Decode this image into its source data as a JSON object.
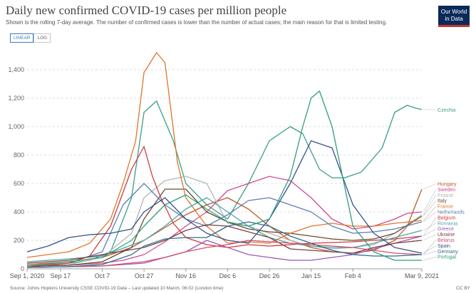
{
  "header": {
    "title": "Daily new confirmed COVID-19 cases per million people",
    "subtitle": "Shown is the rolling 7-day average. The number of confirmed cases is lower than the number of actual cases; the main reason for that is limited testing.",
    "logo_line1": "Our World",
    "logo_line2": "in Data"
  },
  "controls": {
    "linear_label": "LINEAR",
    "log_label": "LOG",
    "selected": "linear"
  },
  "footer": {
    "source": "Source: Johns Hopkins University CSSE COVID-19 Data – Last updated 10 March, 06:02 (London time)",
    "license": "CC BY"
  },
  "chart_data": {
    "type": "line",
    "title": "Daily new confirmed COVID-19 cases per million people",
    "xlabel": "",
    "ylabel": "",
    "x_tick_labels": [
      "Sep 1, 2020",
      "Sep 17",
      "Oct 7",
      "Oct 27",
      "Nov 16",
      "Dec 6",
      "Dec 26",
      "Jan 15",
      "Feb 4",
      "Mar 9, 2021"
    ],
    "x_tick_days": [
      0,
      16,
      36,
      56,
      76,
      96,
      116,
      136,
      156,
      189
    ],
    "xlim": [
      0,
      189
    ],
    "ylim": [
      0,
      1500
    ],
    "y_ticks": [
      0,
      200,
      400,
      600,
      800,
      1000,
      1200,
      1400
    ],
    "y_tick_labels": [
      "0",
      "200",
      "400",
      "600",
      "800",
      "1,000",
      "1,200",
      "1,400"
    ],
    "grid": "horizontal dashed",
    "legend": "right, labels at line ends",
    "series": [
      {
        "name": "Czechia",
        "color": "#3a9e8c",
        "days": [
          0,
          20,
          30,
          40,
          50,
          56,
          62,
          70,
          76,
          86,
          96,
          106,
          116,
          126,
          132,
          140,
          146,
          152,
          160,
          170,
          176,
          182,
          186,
          189
        ],
        "values": [
          20,
          40,
          60,
          120,
          500,
          1100,
          1180,
          900,
          600,
          450,
          350,
          600,
          900,
          1000,
          950,
          700,
          640,
          640,
          680,
          850,
          1100,
          1150,
          1130,
          1120
        ]
      },
      {
        "name": "Hungary",
        "color": "#c05a2a",
        "days": [
          0,
          20,
          36,
          50,
          56,
          66,
          76,
          86,
          96,
          106,
          116,
          126,
          136,
          146,
          156,
          166,
          176,
          182,
          186,
          189
        ],
        "values": [
          30,
          50,
          80,
          150,
          200,
          290,
          380,
          450,
          500,
          420,
          300,
          200,
          150,
          120,
          110,
          130,
          200,
          300,
          450,
          560
        ]
      },
      {
        "name": "Sweden",
        "color": "#d14b8f",
        "days": [
          0,
          20,
          36,
          46,
          56,
          66,
          76,
          86,
          96,
          106,
          116,
          126,
          136,
          146,
          156,
          166,
          176,
          182,
          189
        ],
        "values": [
          20,
          25,
          40,
          60,
          100,
          190,
          300,
          400,
          550,
          600,
          650,
          620,
          500,
          350,
          280,
          300,
          350,
          390,
          400
        ]
      },
      {
        "name": "Poland",
        "color": "#b5b5b5",
        "days": [
          0,
          20,
          36,
          50,
          56,
          66,
          76,
          86,
          96,
          106,
          116,
          126,
          136,
          146,
          156,
          166,
          176,
          189
        ],
        "values": [
          10,
          30,
          80,
          250,
          500,
          620,
          650,
          600,
          320,
          300,
          250,
          200,
          160,
          140,
          150,
          170,
          250,
          380
        ]
      },
      {
        "name": "Italy",
        "color": "#6a4b2e",
        "days": [
          0,
          20,
          36,
          50,
          56,
          66,
          76,
          86,
          96,
          106,
          116,
          126,
          136,
          146,
          156,
          166,
          176,
          189
        ],
        "values": [
          20,
          25,
          50,
          150,
          350,
          560,
          560,
          400,
          330,
          280,
          260,
          250,
          230,
          210,
          200,
          210,
          250,
          370
        ]
      },
      {
        "name": "France",
        "color": "#e0762b",
        "days": [
          0,
          20,
          30,
          40,
          46,
          52,
          56,
          62,
          66,
          72,
          76,
          86,
          96,
          106,
          116,
          126,
          136,
          146,
          156,
          166,
          176,
          189
        ],
        "values": [
          80,
          120,
          180,
          350,
          600,
          900,
          1380,
          1520,
          1450,
          750,
          500,
          300,
          180,
          190,
          180,
          250,
          300,
          320,
          300,
          300,
          320,
          340
        ]
      },
      {
        "name": "Netherlands",
        "color": "#5b7fb0",
        "days": [
          0,
          20,
          36,
          46,
          56,
          66,
          76,
          86,
          96,
          106,
          116,
          126,
          136,
          146,
          156,
          166,
          176,
          189
        ],
        "values": [
          10,
          40,
          120,
          450,
          600,
          450,
          350,
          300,
          380,
          480,
          500,
          450,
          400,
          300,
          250,
          260,
          280,
          330
        ]
      },
      {
        "name": "Belgium",
        "color": "#cd3c3c",
        "days": [
          0,
          20,
          30,
          40,
          50,
          56,
          60,
          64,
          70,
          76,
          86,
          96,
          106,
          116,
          136,
          156,
          176,
          189
        ],
        "values": [
          10,
          40,
          90,
          300,
          700,
          860,
          650,
          500,
          320,
          220,
          170,
          150,
          170,
          160,
          180,
          190,
          210,
          230
        ]
      },
      {
        "name": "Romania",
        "color": "#4ca6a6",
        "days": [
          0,
          20,
          36,
          56,
          66,
          76,
          86,
          96,
          106,
          116,
          126,
          136,
          146,
          156,
          166,
          176,
          189
        ],
        "values": [
          50,
          70,
          90,
          200,
          300,
          420,
          500,
          400,
          300,
          220,
          180,
          160,
          150,
          150,
          180,
          220,
          270
        ]
      },
      {
        "name": "Greece",
        "color": "#9b59b6",
        "days": [
          0,
          20,
          36,
          56,
          76,
          86,
          96,
          106,
          116,
          126,
          136,
          146,
          156,
          166,
          176,
          189
        ],
        "values": [
          10,
          15,
          20,
          40,
          120,
          200,
          150,
          100,
          80,
          60,
          60,
          80,
          100,
          140,
          180,
          230
        ]
      },
      {
        "name": "Ukraine",
        "color": "#7b3f3f",
        "days": [
          0,
          20,
          36,
          56,
          66,
          76,
          86,
          96,
          106,
          116,
          126,
          136,
          146,
          156,
          166,
          176,
          189
        ],
        "values": [
          40,
          60,
          100,
          150,
          200,
          270,
          310,
          300,
          260,
          220,
          140,
          130,
          120,
          110,
          150,
          180,
          200
        ]
      },
      {
        "name": "Belarus",
        "color": "#d94c6a",
        "days": [
          0,
          20,
          36,
          56,
          66,
          76,
          86,
          96,
          106,
          116,
          126,
          136,
          146,
          156,
          166,
          176,
          189
        ],
        "values": [
          10,
          15,
          20,
          50,
          80,
          120,
          150,
          170,
          200,
          190,
          180,
          170,
          160,
          150,
          130,
          110,
          100
        ]
      },
      {
        "name": "Spain",
        "color": "#35518a",
        "days": [
          0,
          10,
          20,
          30,
          40,
          50,
          56,
          66,
          76,
          86,
          96,
          106,
          116,
          126,
          136,
          146,
          156,
          166,
          176,
          189
        ],
        "values": [
          120,
          160,
          220,
          240,
          250,
          280,
          400,
          500,
          350,
          250,
          200,
          180,
          350,
          600,
          900,
          850,
          450,
          250,
          150,
          110
        ]
      },
      {
        "name": "Germany",
        "color": "#2f6e8c",
        "days": [
          0,
          20,
          36,
          50,
          56,
          66,
          76,
          86,
          96,
          106,
          116,
          126,
          136,
          146,
          156,
          166,
          176,
          189
        ],
        "values": [
          10,
          15,
          30,
          100,
          160,
          210,
          220,
          220,
          300,
          330,
          300,
          230,
          180,
          130,
          100,
          90,
          90,
          100
        ]
      },
      {
        "name": "Portugal",
        "color": "#2f9e7c",
        "days": [
          0,
          20,
          36,
          50,
          56,
          66,
          76,
          86,
          96,
          106,
          116,
          126,
          132,
          136,
          140,
          146,
          156,
          166,
          176,
          189
        ],
        "values": [
          20,
          50,
          80,
          200,
          300,
          450,
          520,
          420,
          330,
          300,
          350,
          650,
          1000,
          1200,
          1250,
          1000,
          300,
          120,
          60,
          60
        ]
      }
    ]
  }
}
